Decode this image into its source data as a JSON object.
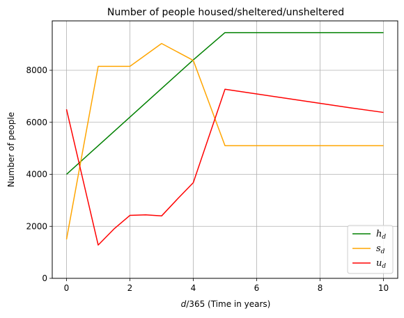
{
  "chart_data": {
    "type": "line",
    "title": "Number of people housed/sheltered/unsheltered",
    "xlabel_var": "d",
    "xlabel_rest": "/365 (Time in years)",
    "ylabel": "Number of people",
    "xlim": [
      -0.45,
      10.45
    ],
    "ylim": [
      0,
      9900
    ],
    "xticks": [
      0,
      2,
      4,
      6,
      8,
      10
    ],
    "yticks": [
      0,
      2000,
      4000,
      6000,
      8000
    ],
    "grid": true,
    "legend_position": "lower-right",
    "series": [
      {
        "name": "h_d",
        "name_base": "h",
        "name_sub": "d",
        "color": "#008000",
        "x": [
          0,
          1,
          2,
          3,
          4,
          5,
          6,
          7,
          8,
          9,
          10
        ],
        "y": [
          4000,
          5100,
          6200,
          7300,
          8400,
          9450,
          9450,
          9450,
          9450,
          9450,
          9450
        ]
      },
      {
        "name": "s_d",
        "name_base": "s",
        "name_sub": "d",
        "color": "#ffa500",
        "x": [
          0,
          1,
          2,
          3,
          4,
          5,
          6,
          7,
          8,
          9,
          10
        ],
        "y": [
          1500,
          8150,
          8150,
          9030,
          8380,
          5100,
          5100,
          5100,
          5100,
          5100,
          5100
        ]
      },
      {
        "name": "u_d",
        "name_base": "u",
        "name_sub": "d",
        "color": "#ff0000",
        "x": [
          0,
          1,
          1.5,
          2,
          2.5,
          3,
          3.5,
          4,
          5,
          6,
          7,
          8,
          9,
          10
        ],
        "y": [
          6500,
          1280,
          1900,
          2420,
          2440,
          2400,
          3050,
          3680,
          7270,
          7090,
          6910,
          6730,
          6550,
          6380
        ]
      }
    ]
  }
}
